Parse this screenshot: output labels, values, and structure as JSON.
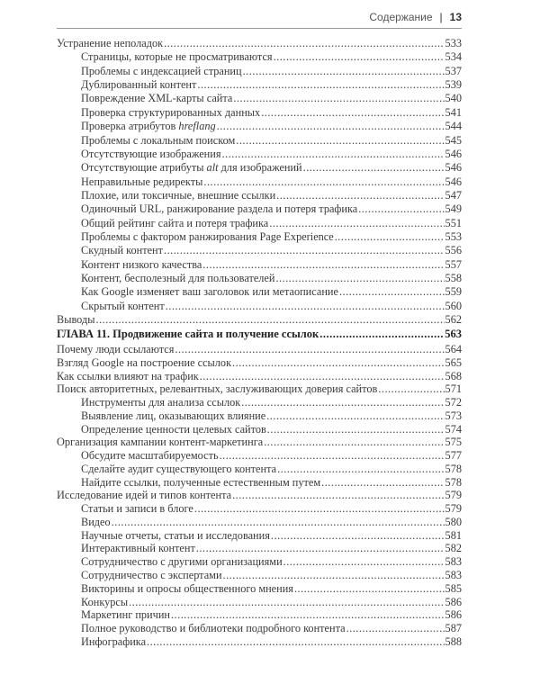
{
  "header": {
    "section": "Содержание",
    "separator": "|",
    "page_number": "13"
  },
  "block1": [
    {
      "level": 1,
      "pre": "Устранение неполадок",
      "em": "",
      "post": "",
      "page": "533"
    },
    {
      "level": 2,
      "pre": "Страницы, которые не просматриваются",
      "em": "",
      "post": "",
      "page": "534"
    },
    {
      "level": 2,
      "pre": "Проблемы с индексацией страниц",
      "em": "",
      "post": "",
      "page": "537"
    },
    {
      "level": 2,
      "pre": "Дублированный контент",
      "em": "",
      "post": "",
      "page": "539"
    },
    {
      "level": 2,
      "pre": "Повреждение XML-карты сайта",
      "em": "",
      "post": "",
      "page": "540"
    },
    {
      "level": 2,
      "pre": "Проверка структурированных данных",
      "em": "",
      "post": "",
      "page": "541"
    },
    {
      "level": 2,
      "pre": "Проверка атрибутов ",
      "em": "hreflang",
      "post": "",
      "page": "544"
    },
    {
      "level": 2,
      "pre": "Проблемы с локальным поиском",
      "em": "",
      "post": "",
      "page": "545"
    },
    {
      "level": 2,
      "pre": "Отсутствующие изображения",
      "em": "",
      "post": "",
      "page": "546"
    },
    {
      "level": 2,
      "pre": "Отсутствующие атрибуты ",
      "em": "alt",
      "post": " для изображений",
      "page": "546"
    },
    {
      "level": 2,
      "pre": "Неправильные редиректы",
      "em": "",
      "post": "",
      "page": "546"
    },
    {
      "level": 2,
      "pre": "Плохие, или токсичные, внешние ссылки",
      "em": "",
      "post": "",
      "page": "547"
    },
    {
      "level": 2,
      "pre": "Одиночный URL, ранжирование раздела и потеря трафика",
      "em": "",
      "post": "",
      "page": "549"
    },
    {
      "level": 2,
      "pre": "Общий рейтинг сайта и потеря трафика",
      "em": "",
      "post": "",
      "page": "551"
    },
    {
      "level": 2,
      "pre": "Проблемы с фактором ранжирования Page Experience",
      "em": "",
      "post": "",
      "page": "553"
    },
    {
      "level": 2,
      "pre": "Скудный контент",
      "em": "",
      "post": "",
      "page": "556"
    },
    {
      "level": 2,
      "pre": "Контент низкого качества",
      "em": "",
      "post": "",
      "page": "557"
    },
    {
      "level": 2,
      "pre": "Контент, бесполезный для пользователей",
      "em": "",
      "post": "",
      "page": "558"
    },
    {
      "level": 2,
      "pre": "Как Google изменяет ваш заголовок или метаописание",
      "em": "",
      "post": "",
      "page": "559"
    },
    {
      "level": 2,
      "pre": "Скрытый контент",
      "em": "",
      "post": "",
      "page": "560"
    },
    {
      "level": 1,
      "pre": "Выводы",
      "em": "",
      "post": "",
      "page": "562"
    }
  ],
  "chapter": {
    "title": "ГЛАВА 11. Продвижение сайта и получение ссылок",
    "page": "563"
  },
  "block2": [
    {
      "level": 1,
      "pre": "Почему люди ссылаются",
      "page": "564"
    },
    {
      "level": 1,
      "pre": "Взгляд Google на построение ссылок",
      "page": "565"
    },
    {
      "level": 1,
      "pre": "Как ссылки влияют на трафик",
      "page": "568"
    },
    {
      "level": 1,
      "pre": "Поиск авторитетных, релевантных, заслуживающих доверия сайтов",
      "page": "571"
    },
    {
      "level": 2,
      "pre": "Инструменты для анализа ссылок",
      "page": "572"
    },
    {
      "level": 2,
      "pre": "Выявление лиц, оказывающих влияние",
      "page": "573"
    },
    {
      "level": 2,
      "pre": "Определение ценности целевых сайтов",
      "page": "574"
    },
    {
      "level": 1,
      "pre": "Организация кампании контент-маркетинга",
      "page": "575"
    },
    {
      "level": 2,
      "pre": "Обсудите масштабируемость",
      "page": "577"
    },
    {
      "level": 2,
      "pre": "Сделайте аудит существующего контента",
      "page": "578"
    },
    {
      "level": 2,
      "pre": "Найдите ссылки, полученные естественным путем",
      "page": "578"
    },
    {
      "level": 1,
      "pre": "Исследование идей и типов контента",
      "page": "579"
    },
    {
      "level": 2,
      "pre": "Статьи и записи в блоге",
      "page": "579"
    },
    {
      "level": 2,
      "pre": "Видео",
      "page": "580"
    },
    {
      "level": 2,
      "pre": "Научные отчеты, статьи и исследования",
      "page": "581"
    },
    {
      "level": 2,
      "pre": "Интерактивный контент",
      "page": "582"
    },
    {
      "level": 2,
      "pre": "Сотрудничество с другими организациями",
      "page": "583"
    },
    {
      "level": 2,
      "pre": "Сотрудничество с экспертами",
      "page": "583"
    },
    {
      "level": 2,
      "pre": "Викторины и опросы общественного мнения",
      "page": "585"
    },
    {
      "level": 2,
      "pre": "Конкурсы",
      "page": "586"
    },
    {
      "level": 2,
      "pre": "Маркетинг причин",
      "page": "586"
    },
    {
      "level": 2,
      "pre": "Полное руководство и библиотеки подробного контента",
      "page": "587"
    },
    {
      "level": 2,
      "pre": "Инфографика",
      "page": "588"
    }
  ]
}
